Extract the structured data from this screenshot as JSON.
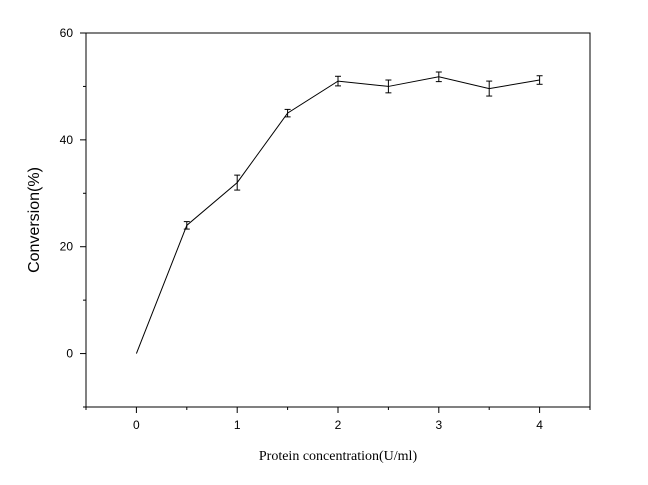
{
  "chart_data": {
    "type": "line",
    "title": "",
    "xlabel": "Protein concentration(U/ml)",
    "ylabel": "Conversion(%)",
    "xlim": [
      -0.5,
      4.5
    ],
    "ylim": [
      -10,
      60
    ],
    "x_ticks": [
      0,
      1,
      2,
      3,
      4
    ],
    "x_tick_labels": [
      "0",
      "1",
      "2",
      "3",
      "4"
    ],
    "x_minor_ticks": [
      -0.5,
      0.5,
      1.5,
      2.5,
      3.5,
      4.5
    ],
    "y_ticks": [
      0,
      20,
      40,
      60
    ],
    "y_tick_labels": [
      "0",
      "20",
      "40",
      "60"
    ],
    "y_minor_ticks": [
      -10,
      10,
      30,
      50
    ],
    "grid": false,
    "legend": "none",
    "color": "#000000",
    "series": [
      {
        "x": [
          0,
          0.5,
          1,
          1.5,
          2,
          2.5,
          3,
          3.5,
          4
        ],
        "y": [
          0,
          24.0,
          32.0,
          45.0,
          51.0,
          50.0,
          51.8,
          49.6,
          51.2
        ],
        "error": [
          0,
          0.7,
          1.4,
          0.7,
          0.9,
          1.2,
          0.9,
          1.4,
          0.8
        ]
      }
    ]
  }
}
